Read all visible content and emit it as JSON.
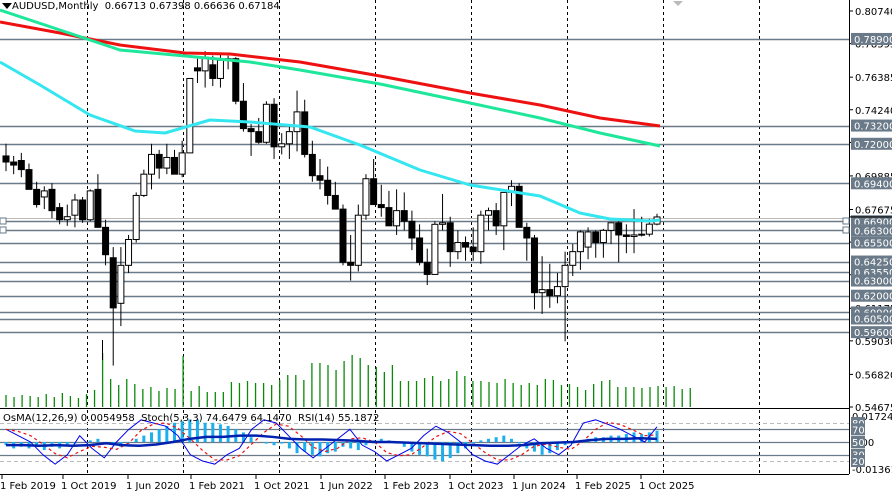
{
  "header": {
    "symbol": "AUDUSD,Monthly",
    "open": "0.66713",
    "high": "0.67398",
    "low": "0.66636",
    "close": "0.67184",
    "text": "AUDUSD,Monthly  0.66713 0.67398 0.66636 0.67184"
  },
  "indicator_header": {
    "text": "OsMA(12,26,9) 0.0054958  Stoch(5,3,3) 74.6479 64.1470  RSI(14) 55.1872"
  },
  "colors": {
    "ema50": "#33e6f0",
    "ema144": "#1ee69a",
    "ema200": "#ee1111",
    "volume": "#0a8a0a",
    "osma": "#1ab0f0",
    "stoch_main": "#0000ee",
    "stoch_signal": "#ee1111",
    "rsi": "#0020b0",
    "level_line": "#6a7a88",
    "tag_bg": "#6a7a88"
  },
  "chart_data": {
    "type": "candlestick",
    "title": "AUDUSD, Monthly",
    "price_axis_ticks": [
      "0.80740",
      "0.78595",
      "0.76385",
      "0.74240",
      "0.72090",
      "0.69885",
      "0.67675",
      "0.65530",
      "0.63380",
      "0.61175",
      "0.59030",
      "0.56820",
      "0.54675"
    ],
    "level_tags": [
      "0.78900",
      "0.73200",
      "0.72000",
      "0.69400",
      "0.66900",
      "0.66300",
      "0.65500",
      "0.64250",
      "0.63550",
      "0.63000",
      "0.62000",
      "0.60900",
      "0.60500",
      "0.59600"
    ],
    "current_price": "0.67184",
    "time_axis_labels": [
      "1 Feb 2019",
      "1 Oct 2019",
      "1 Jun 2020",
      "1 Feb 2021",
      "1 Oct 2021",
      "1 Jun 2022",
      "1 Feb 2023",
      "1 Oct 2023",
      "1 Jun 2024",
      "1 Feb 2025",
      "1 Oct 2025"
    ],
    "indicator_axis": {
      "osma_max": "0.017241",
      "osma_zero": "0.00",
      "osma_min": "-0.013615",
      "levels": [
        "80",
        "70",
        "50",
        "30",
        "20"
      ]
    },
    "moving_averages": [
      {
        "name": "EMA50",
        "color": "#33e6f0",
        "approx_end": 0.668
      },
      {
        "name": "EMA144",
        "color": "#1ee69a",
        "approx_end": 0.716
      },
      {
        "name": "EMA200",
        "color": "#ee1111",
        "approx_end": 0.729
      }
    ],
    "indicators": {
      "OsMA(12,26,9)": 0.0054958,
      "Stoch(5,3,3)": [
        74.6479,
        64.147
      ],
      "RSI(14)": 55.1872
    }
  }
}
